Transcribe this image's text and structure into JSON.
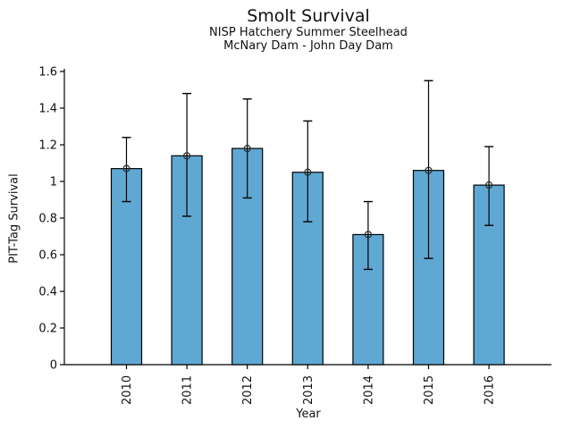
{
  "chart_data": {
    "type": "bar",
    "title": "Smolt Survival",
    "subtitle1": "NISP Hatchery Summer Steelhead",
    "subtitle2": "McNary Dam - John Day Dam",
    "xlabel": "Year",
    "ylabel": "PIT-Tag Survival",
    "categories": [
      "2010",
      "2011",
      "2012",
      "2013",
      "2014",
      "2015",
      "2016"
    ],
    "values": [
      1.07,
      1.14,
      1.18,
      1.05,
      0.71,
      1.06,
      0.98
    ],
    "ci_lower": [
      0.89,
      0.81,
      0.91,
      0.78,
      0.52,
      0.58,
      0.76
    ],
    "ci_upper": [
      1.24,
      1.48,
      1.45,
      1.33,
      0.89,
      1.55,
      1.19
    ],
    "ylim": [
      0,
      1.6
    ],
    "ytick_values": [
      0,
      0.2,
      0.4,
      0.6,
      0.8,
      1,
      1.2,
      1.4,
      1.6
    ],
    "ytick_labels": [
      "0",
      "0.2",
      "0.4",
      "0.6",
      "0.8",
      "1",
      "1.2",
      "1.4",
      "1.6"
    ],
    "grid": false,
    "legend": "none",
    "bar_color": "#5FA8D3",
    "bar_edge_color": "#000000",
    "error_color": "#000000",
    "marker": "open-circle",
    "marker_color": "#2b2b2b",
    "axis_color": "#000000"
  }
}
